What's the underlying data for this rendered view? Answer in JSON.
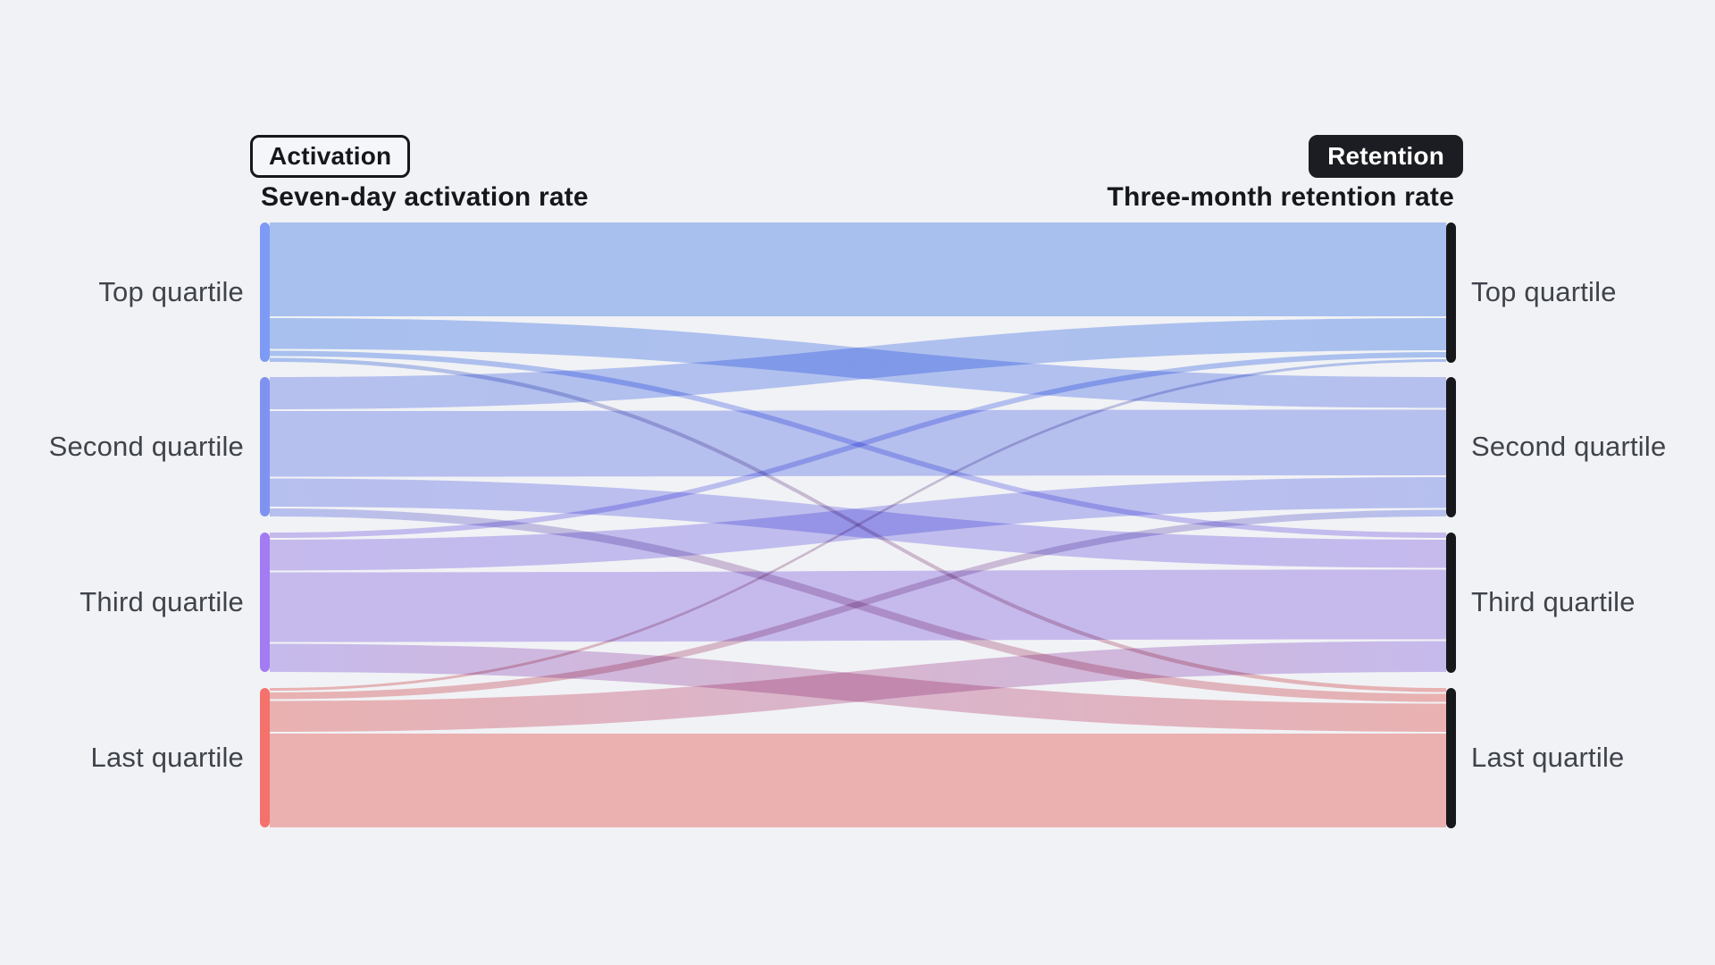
{
  "page": {
    "background_color": "#F1F2F5",
    "text_color": "#3F434A",
    "title_color": "#16171B"
  },
  "chart_data": {
    "type": "sankey",
    "badge_left": "Activation",
    "badge_right": "Retention",
    "title_left": "Seven-day activation rate",
    "title_right": "Three-month retention rate",
    "categories": [
      "Top quartile",
      "Second quartile",
      "Third quartile",
      "Last quartile"
    ],
    "left_axis_categories": [
      "Top quartile",
      "Second quartile",
      "Third quartile",
      "Last quartile"
    ],
    "right_axis_categories": [
      "Top quartile",
      "Second quartile",
      "Third quartile",
      "Last quartile"
    ],
    "node_colors": [
      "#7D9BF4",
      "#8092F1",
      "#A37BF2",
      "#F4716C"
    ],
    "flow_colors": [
      "#ABC7F8",
      "#BCC6F8",
      "#CEBFF6",
      "#F7B5B1"
    ],
    "right_node_color": "#17181C",
    "badge_left_style": {
      "background": "#F5F6F9",
      "border": "#16171B",
      "text": "#16171B"
    },
    "badge_right_style": {
      "background": "#1C1D22",
      "text": "#FFFFFF"
    },
    "legend_position": "none",
    "grid": false,
    "links": [
      {
        "source": "Top quartile",
        "target": "Top quartile",
        "value": 70
      },
      {
        "source": "Top quartile",
        "target": "Second quartile",
        "value": 23
      },
      {
        "source": "Top quartile",
        "target": "Third quartile",
        "value": 4
      },
      {
        "source": "Top quartile",
        "target": "Last quartile",
        "value": 3
      },
      {
        "source": "Second quartile",
        "target": "Top quartile",
        "value": 24
      },
      {
        "source": "Second quartile",
        "target": "Second quartile",
        "value": 49
      },
      {
        "source": "Second quartile",
        "target": "Third quartile",
        "value": 21
      },
      {
        "source": "Second quartile",
        "target": "Last quartile",
        "value": 6
      },
      {
        "source": "Third quartile",
        "target": "Top quartile",
        "value": 4
      },
      {
        "source": "Third quartile",
        "target": "Second quartile",
        "value": 23
      },
      {
        "source": "Third quartile",
        "target": "Third quartile",
        "value": 52
      },
      {
        "source": "Third quartile",
        "target": "Last quartile",
        "value": 21
      },
      {
        "source": "Last quartile",
        "target": "Top quartile",
        "value": 2
      },
      {
        "source": "Last quartile",
        "target": "Second quartile",
        "value": 5
      },
      {
        "source": "Last quartile",
        "target": "Third quartile",
        "value": 23
      },
      {
        "source": "Last quartile",
        "target": "Last quartile",
        "value": 70
      }
    ]
  }
}
